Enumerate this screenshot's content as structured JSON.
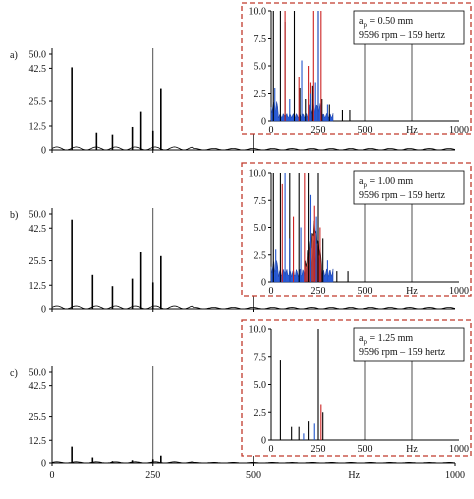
{
  "chart_data": [
    {
      "type": "line",
      "panel_label": "a)",
      "xlim": [
        0,
        1000
      ],
      "ylim": [
        0,
        50
      ],
      "y_ticks": [
        "0",
        "12.5",
        "25.5",
        "42.5",
        "50.0"
      ],
      "y_tick_values": [
        0,
        12.5,
        25.5,
        42.5,
        50
      ],
      "x_ticks": [],
      "x_tick_values": [
        0,
        250,
        500
      ],
      "xlabel": "",
      "grid": "vertical lines at 250 and 500",
      "series": [
        {
          "color": "#000000",
          "peaks": [
            [
              50,
              43
            ],
            [
              110,
              9
            ],
            [
              150,
              8
            ],
            [
              200,
              12
            ],
            [
              220,
              20
            ],
            [
              250,
              10
            ],
            [
              270,
              32
            ]
          ]
        }
      ],
      "inset": {
        "annotation_line1": "a",
        "annotation_sub": "p",
        "annotation_value": " = 0.50 mm",
        "annotation_line2": "9596 rpm –  159 hertz",
        "x_ticks": [
          "0",
          "250",
          "500",
          "Hz",
          "1000"
        ],
        "x_tick_values": [
          0,
          250,
          500,
          1000
        ],
        "y_ticks": [
          "0",
          "2.5",
          "5.0",
          "7.5",
          "10.0"
        ],
        "y_tick_values": [
          0,
          2.5,
          5,
          7.5,
          10
        ],
        "xlim": [
          0,
          1000
        ],
        "ylim": [
          0,
          10
        ],
        "grid": "vertical lines at 250, 500, 750",
        "series": [
          {
            "color": "#000000",
            "peaks": [
              [
                12,
                10
              ],
              [
                50,
                10
              ],
              [
                75,
                9
              ],
              [
                125,
                10
              ],
              [
                155,
                3
              ],
              [
                185,
                2
              ],
              [
                210,
                2
              ],
              [
                220,
                3.2
              ],
              [
                250,
                10
              ],
              [
                270,
                2
              ],
              [
                310,
                1.5
              ],
              [
                380,
                1
              ],
              [
                420,
                1
              ]
            ]
          },
          {
            "color": "#cc2222",
            "peaks": [
              [
                75,
                10
              ],
              [
                150,
                4
              ],
              [
                200,
                5
              ],
              [
                210,
                3.5
              ],
              [
                225,
                10
              ],
              [
                265,
                10
              ]
            ]
          },
          {
            "color": "#2255cc",
            "peaks": [
              [
                20,
                3
              ],
              [
                100,
                2
              ],
              [
                165,
                5.5
              ],
              [
                210,
                2.5
              ],
              [
                235,
                3.5
              ],
              [
                250,
                10
              ],
              [
                300,
                1.5
              ]
            ]
          }
        ]
      }
    },
    {
      "type": "line",
      "panel_label": "b)",
      "xlim": [
        0,
        1000
      ],
      "ylim": [
        0,
        50
      ],
      "y_ticks": [
        "0",
        "12.5",
        "25.5",
        "42.5",
        "50.0"
      ],
      "y_tick_values": [
        0,
        12.5,
        25.5,
        42.5,
        50
      ],
      "x_ticks": [],
      "x_tick_values": [
        0,
        250,
        500
      ],
      "xlabel": "",
      "grid": "vertical lines at 250 and 500",
      "series": [
        {
          "color": "#000000",
          "peaks": [
            [
              50,
              47
            ],
            [
              100,
              18
            ],
            [
              150,
              12
            ],
            [
              200,
              16
            ],
            [
              220,
              30
            ],
            [
              250,
              14
            ],
            [
              270,
              28
            ]
          ]
        }
      ],
      "inset": {
        "annotation_line1": "a",
        "annotation_sub": "p",
        "annotation_value": " = 1.00 mm",
        "annotation_line2": "9596 rpm –  159 hertz",
        "x_ticks": [
          "0",
          "250",
          "500",
          "Hz",
          "1000"
        ],
        "x_tick_values": [
          0,
          250,
          500,
          1000
        ],
        "y_ticks": [
          "0",
          "2.5",
          "5.0",
          "7.5",
          "10.0"
        ],
        "y_tick_values": [
          0,
          2.5,
          5,
          7.5,
          10
        ],
        "xlim": [
          0,
          1000
        ],
        "ylim": [
          0,
          10
        ],
        "grid": "vertical lines at 250, 500, 750",
        "series": [
          {
            "color": "#000000",
            "peaks": [
              [
                12,
                10
              ],
              [
                50,
                10
              ],
              [
                100,
                10
              ],
              [
                150,
                10
              ],
              [
                200,
                10
              ],
              [
                250,
                10
              ],
              [
                275,
                4
              ],
              [
                350,
                1
              ],
              [
                410,
                1
              ]
            ]
          },
          {
            "color": "#cc2222",
            "peaks": [
              [
                60,
                9
              ],
              [
                120,
                6
              ],
              [
                180,
                10
              ],
              [
                230,
                7
              ],
              [
                260,
                5
              ]
            ]
          },
          {
            "color": "#2255cc",
            "peaks": [
              [
                25,
                3
              ],
              [
                75,
                10
              ],
              [
                100,
                4
              ],
              [
                160,
                5
              ],
              [
                210,
                8
              ],
              [
                240,
                6
              ],
              [
                300,
                2
              ]
            ]
          }
        ]
      }
    },
    {
      "type": "line",
      "panel_label": "c)",
      "xlim": [
        0,
        1000
      ],
      "ylim": [
        0,
        50
      ],
      "y_ticks": [
        "0",
        "12.5",
        "25.5",
        "42.5",
        "50.0"
      ],
      "y_tick_values": [
        0,
        12.5,
        25.5,
        42.5,
        50
      ],
      "x_ticks": [
        "0",
        "250",
        "500",
        "Hz",
        "1000"
      ],
      "x_tick_values": [
        0,
        250,
        500,
        1000
      ],
      "xlabel": "Hz",
      "grid": "vertical lines at 250 and 500",
      "series": [
        {
          "color": "#000000",
          "peaks": [
            [
              50,
              9
            ],
            [
              100,
              3
            ],
            [
              150,
              1
            ],
            [
              200,
              1.5
            ],
            [
              250,
              2
            ],
            [
              270,
              4
            ]
          ]
        }
      ],
      "inset": {
        "annotation_line1": "a",
        "annotation_sub": "p",
        "annotation_value": " = 1.25 mm",
        "annotation_line2": "9596 rpm –  159 hertz",
        "x_ticks": [
          "0",
          "250",
          "500",
          "Hz",
          "1000"
        ],
        "x_tick_values": [
          0,
          250,
          500,
          1000
        ],
        "y_ticks": [
          "0",
          "2.5",
          "5.0",
          "7.5",
          "10.0"
        ],
        "y_tick_values": [
          0,
          2.5,
          5,
          7.5,
          10
        ],
        "xlim": [
          0,
          1000
        ],
        "ylim": [
          0,
          10
        ],
        "grid": "vertical lines at 250, 500, 750",
        "series": [
          {
            "color": "#000000",
            "peaks": [
              [
                50,
                7.2
              ],
              [
                110,
                1.2
              ],
              [
                150,
                1.2
              ],
              [
                200,
                1.7
              ],
              [
                250,
                10
              ],
              [
                275,
                2.5
              ]
            ]
          },
          {
            "color": "#cc2222",
            "peaks": [
              [
                265,
                3.2
              ]
            ]
          },
          {
            "color": "#2255cc",
            "peaks": [
              [
                175,
                0.6
              ],
              [
                230,
                1.5
              ]
            ]
          }
        ]
      }
    }
  ]
}
